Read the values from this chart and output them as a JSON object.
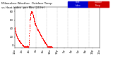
{
  "title_left": "Milwaukee Weather  Outdoor Temp",
  "background_color": "#ffffff",
  "dot_color_temp": "#ff0000",
  "dot_color_heat": "#0000ff",
  "legend_color_blue": "#0000cc",
  "legend_color_red": "#cc0000",
  "ylim": [
    -5,
    90
  ],
  "yticks": [
    0,
    20,
    40,
    60,
    80
  ],
  "xlim": [
    0,
    1440
  ],
  "xlabel_fontsize": 2.8,
  "ylabel_fontsize": 2.8,
  "title_fontsize": 3.0,
  "dot_size": 0.5,
  "grid_color": "#bbbbbb",
  "vlines": [
    180,
    360,
    540,
    720,
    900,
    1080,
    1260
  ],
  "temperature_curve": [
    42,
    41,
    40,
    39,
    38,
    37,
    37,
    36,
    35,
    34,
    34,
    33,
    32,
    32,
    31,
    30,
    30,
    29,
    29,
    28,
    28,
    27,
    27,
    26,
    26,
    26,
    25,
    25,
    25,
    24,
    24,
    23,
    23,
    23,
    22,
    22,
    22,
    21,
    21,
    21,
    20,
    20,
    20,
    19,
    19,
    19,
    18,
    18,
    18,
    18,
    17,
    17,
    17,
    17,
    16,
    16,
    16,
    16,
    15,
    15,
    15,
    15,
    14,
    14,
    14,
    14,
    13,
    13,
    13,
    13,
    12,
    12,
    12,
    12,
    11,
    11,
    11,
    11,
    11,
    10,
    10,
    10,
    10,
    10,
    9,
    9,
    9,
    9,
    9,
    8,
    8,
    8,
    8,
    8,
    7,
    7,
    7,
    7,
    7,
    7,
    6,
    6,
    6,
    6,
    6,
    6,
    5,
    5,
    5,
    5,
    5,
    5,
    4,
    4,
    4,
    4,
    4,
    4,
    3,
    3,
    3,
    3,
    3,
    3,
    2,
    2,
    2,
    2,
    2,
    2,
    1,
    1,
    1,
    1,
    1,
    1,
    0,
    0,
    0,
    0,
    0,
    0,
    -1,
    -1,
    -1,
    -1,
    -1,
    -1,
    -2,
    -2,
    -2,
    -2,
    -2,
    -2,
    -3,
    -3,
    -3,
    -3,
    -3,
    -3,
    -3,
    -3,
    -3,
    -3,
    -3,
    -3,
    -3,
    -3,
    -3,
    -3,
    -3,
    -3,
    -3,
    -3,
    -3,
    -3,
    -3,
    -3,
    -3,
    -3,
    -3,
    -3,
    -3,
    -3,
    -3,
    -3,
    -3,
    -3,
    -3,
    -3,
    -3,
    -3,
    -3,
    -3,
    -3,
    -3,
    -3,
    -3,
    -3,
    -3,
    -3,
    -3,
    -3,
    -3,
    -3,
    -3,
    -3,
    -3,
    -3,
    -3,
    -3,
    -3,
    -3,
    -3,
    -3,
    -3,
    -3,
    -3,
    -3,
    -3,
    -3,
    -3,
    -3,
    -3,
    -3,
    -3,
    -3,
    -3,
    -3,
    -3,
    -3,
    -3,
    -3,
    -3,
    -3,
    -3,
    -2,
    -1,
    0,
    2,
    4,
    6,
    8,
    11,
    14,
    17,
    21,
    25,
    29,
    33,
    37,
    40,
    43,
    46,
    49,
    52,
    55,
    57,
    59,
    61,
    63,
    64,
    65,
    67,
    68,
    69,
    70,
    71,
    72,
    73,
    74,
    74,
    75,
    76,
    76,
    77,
    77,
    78,
    78,
    78,
    79,
    79,
    79,
    80,
    80,
    80,
    80,
    80,
    80,
    80,
    80,
    80,
    80,
    80,
    79,
    79,
    79,
    79,
    78,
    78,
    78,
    77,
    77,
    76,
    76,
    75,
    75,
    74,
    74,
    73,
    73,
    72,
    71,
    71,
    70,
    69,
    69,
    68,
    67,
    67,
    66,
    65,
    65,
    64,
    63,
    63,
    62,
    61,
    61,
    60,
    60,
    59,
    58,
    58,
    57,
    57,
    56,
    56,
    55,
    55,
    54,
    54,
    53,
    53,
    52,
    52,
    51,
    51,
    51,
    50,
    50,
    49,
    49,
    49,
    48,
    48,
    48,
    47,
    47,
    47,
    46,
    46,
    46,
    45,
    45,
    45,
    44,
    44,
    44,
    43,
    43,
    43,
    42,
    42,
    42,
    42,
    41,
    41,
    41,
    41,
    40,
    40,
    40,
    40,
    39,
    39,
    39,
    39,
    38,
    38,
    38,
    37,
    37,
    37,
    37,
    36,
    36,
    36,
    36,
    35,
    35,
    35,
    35,
    34,
    34,
    34,
    34,
    33,
    33,
    33,
    33,
    32,
    32,
    32,
    32,
    31,
    31,
    31,
    31,
    30,
    30,
    30,
    30,
    29,
    29,
    29,
    29,
    28,
    28,
    28,
    28,
    27,
    27,
    27,
    27,
    26,
    26,
    26,
    25,
    25,
    25,
    25,
    24,
    24,
    24,
    23,
    23,
    23,
    23,
    22,
    22,
    22,
    22,
    21,
    21,
    21,
    21,
    20,
    20,
    20,
    20,
    19,
    19,
    19,
    19,
    18,
    18,
    18,
    18,
    17,
    17,
    17,
    17,
    16,
    16,
    16,
    16,
    15,
    15,
    15,
    15,
    14,
    14,
    14,
    14,
    14,
    13,
    13,
    13,
    13,
    12,
    12,
    12,
    12,
    11,
    11,
    11,
    11,
    10,
    10,
    10,
    10,
    10,
    9,
    9,
    9,
    9,
    9,
    8,
    8,
    8,
    8,
    7,
    7,
    7,
    7,
    7,
    6,
    6,
    6,
    6,
    6,
    5,
    5,
    5,
    5,
    5,
    4,
    4,
    4,
    4,
    4,
    3,
    3,
    3,
    3,
    3,
    2,
    2,
    2,
    2,
    2,
    1,
    1,
    1,
    1,
    0,
    0,
    0,
    0,
    -1,
    -1,
    -1,
    -1,
    -1,
    -2,
    -2,
    -2,
    -2,
    -2,
    -3,
    -3,
    -3,
    -3,
    -3,
    -3,
    -3,
    -3,
    -3,
    -3,
    -3,
    -3,
    -3,
    -3,
    -3,
    -3,
    -3,
    -3,
    -3,
    -3,
    -3,
    -3,
    -3,
    -3,
    -3,
    -3,
    -3,
    -3,
    -3,
    -3,
    -3,
    -3,
    -3,
    -3,
    -3,
    -3,
    -3,
    -3,
    -3,
    -3,
    -3,
    -3,
    -3,
    -3,
    -3,
    -3,
    -3,
    -3,
    -3,
    -3,
    -3,
    -3,
    -3,
    -3,
    -3,
    -3,
    -3,
    -3,
    -3,
    -3,
    -3,
    -3,
    -3,
    -3,
    -3,
    -3,
    -3,
    -3,
    -3,
    -3,
    -3,
    -3,
    -3,
    -3,
    -3,
    -3
  ],
  "xtick_positions": [
    0,
    120,
    240,
    360,
    480,
    600,
    720,
    840,
    960,
    1080,
    1200,
    1320,
    1440
  ],
  "xtick_labels": [
    "12a",
    "2a",
    "4a",
    "6a",
    "8a",
    "10a",
    "12p",
    "2p",
    "4p",
    "6p",
    "8p",
    "10p",
    "12a"
  ]
}
